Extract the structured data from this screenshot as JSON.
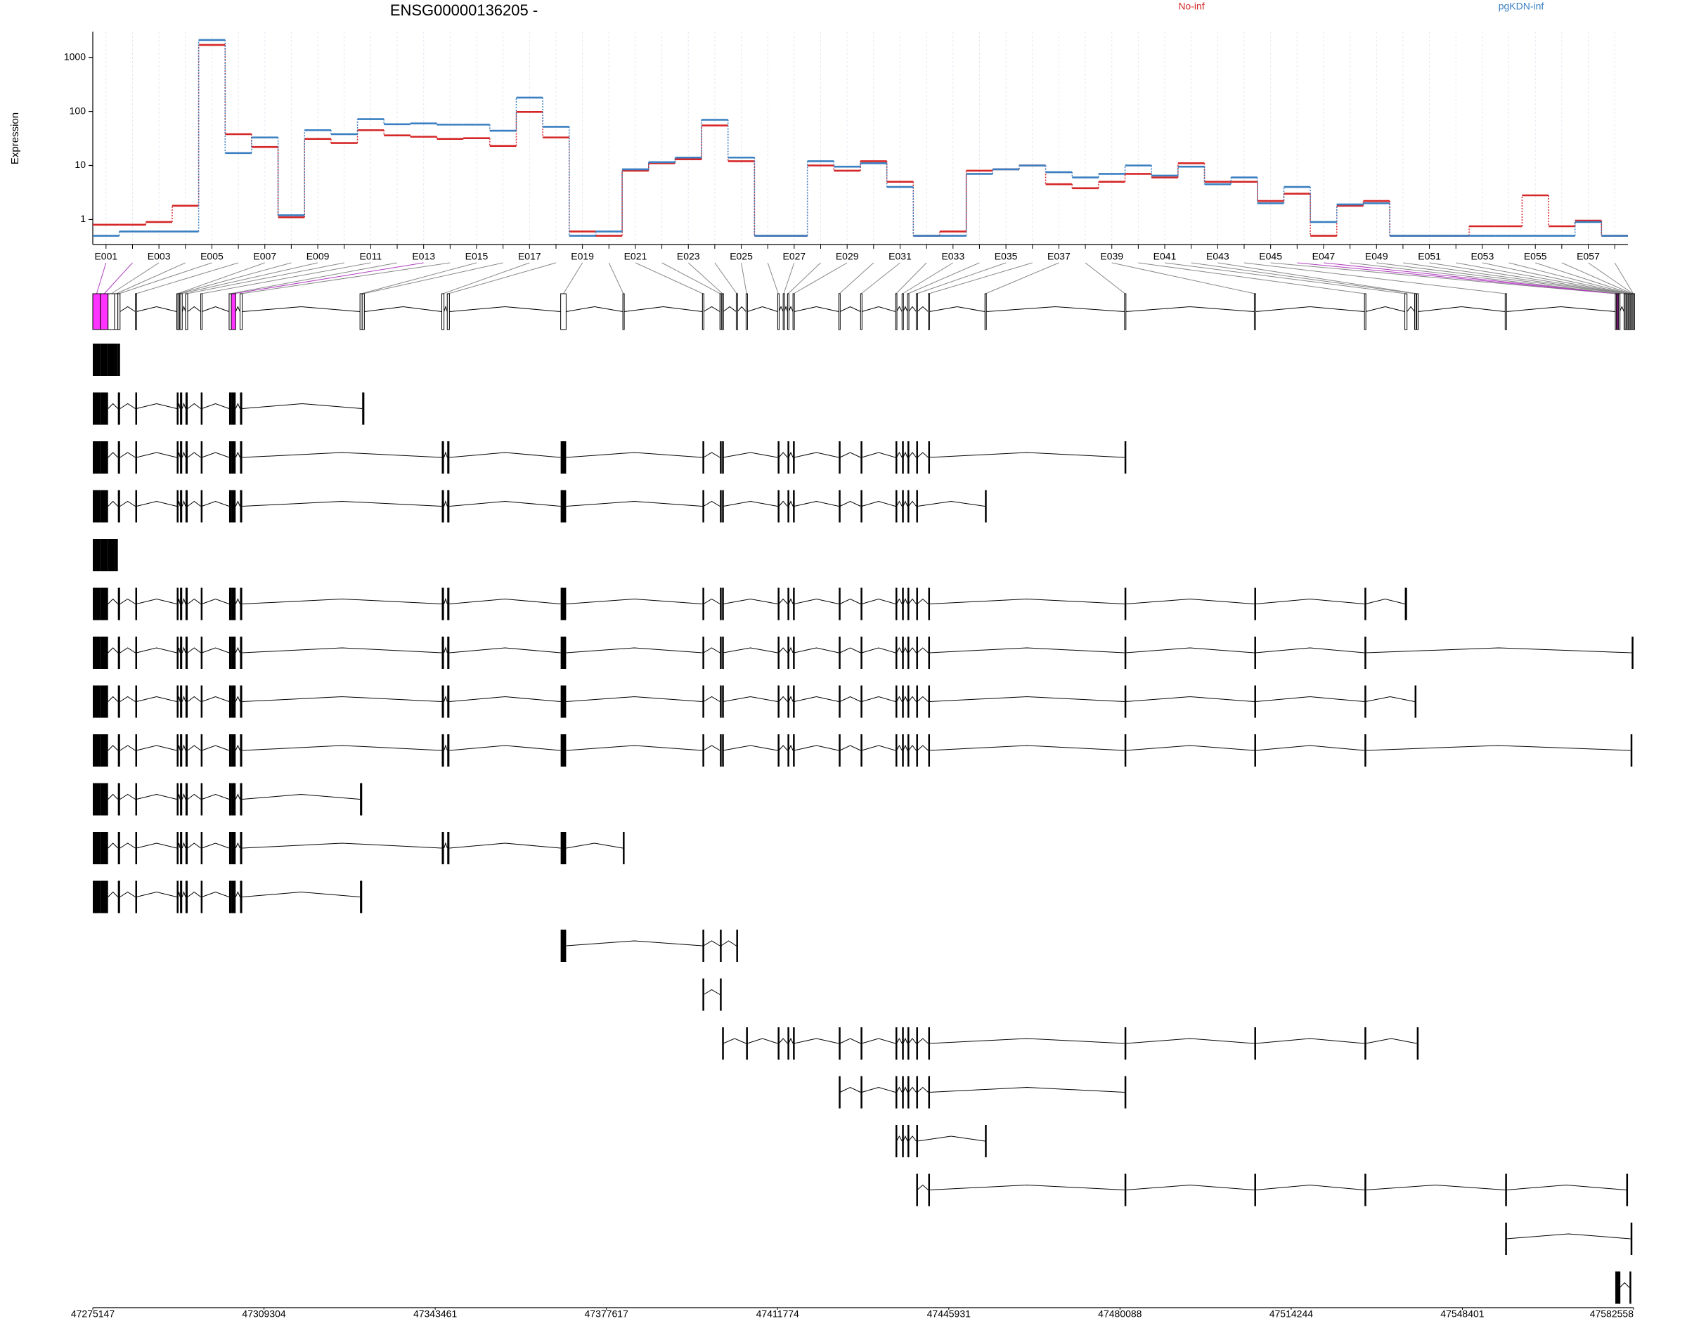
{
  "chart_data": {
    "type": "line",
    "title": "ENSG00000136205 -",
    "ylabel": "Expression",
    "yscale": "log",
    "ylim": [
      0.4,
      3000
    ],
    "yticks": [
      1,
      10,
      100,
      1000
    ],
    "grid": true,
    "legend": "top",
    "categories": [
      "E001",
      null,
      "E003",
      null,
      "E005",
      null,
      "E007",
      null,
      "E009",
      null,
      "E011",
      null,
      "E013",
      null,
      "E015",
      null,
      "E017",
      null,
      "E019",
      null,
      "E021",
      null,
      "E023",
      null,
      "E025",
      null,
      "E027",
      null,
      "E029",
      null,
      "E031",
      null,
      "E033",
      null,
      "E035",
      null,
      "E037",
      null,
      "E039",
      null,
      "E041",
      null,
      "E043",
      null,
      "E045",
      null,
      "E047",
      null,
      "E049",
      null,
      "E051",
      null,
      "E053",
      null,
      "E055",
      null,
      "E057",
      null
    ],
    "series": [
      {
        "name": "No-inf",
        "color": "#d62728",
        "values": [
          0.8,
          0.8,
          0.9,
          1.8,
          1700,
          38,
          22,
          1.1,
          31,
          26,
          45,
          36,
          34,
          31,
          32,
          23,
          98,
          33,
          0.6,
          0.5,
          8,
          11,
          13,
          55,
          12,
          0.5,
          0.5,
          10,
          8,
          12,
          5,
          0.5,
          0.6,
          8,
          8.5,
          10,
          4.5,
          3.8,
          5,
          7,
          6,
          11,
          5,
          5,
          2.2,
          3,
          0.5,
          1.8,
          2.2,
          0.5,
          0.5,
          0.5,
          0.75,
          0.75,
          2.8,
          0.75,
          0.95,
          0.5
        ]
      },
      {
        "name": "pgKDN-inf",
        "color": "#3a7fc1",
        "values": [
          0.5,
          0.6,
          0.6,
          0.6,
          2100,
          17,
          33,
          1.2,
          45,
          38,
          72,
          58,
          60,
          57,
          57,
          44,
          180,
          52,
          0.5,
          0.6,
          8.5,
          11.5,
          14,
          70,
          14,
          0.5,
          0.5,
          12,
          9.5,
          11,
          4,
          0.5,
          0.5,
          7,
          8.5,
          10,
          7.5,
          6,
          7,
          10,
          6.5,
          9.5,
          4.5,
          6,
          2,
          4,
          0.9,
          1.9,
          2,
          0.5,
          0.5,
          0.5,
          0.5,
          0.5,
          0.5,
          0.5,
          0.9,
          0.5
        ]
      }
    ],
    "gene_model": {
      "xlim": [
        47275147,
        47582558
      ],
      "xticks": [
        47275147,
        47309304,
        47343461,
        47377617,
        47411774,
        47445931,
        47480088,
        47514244,
        47548401,
        47582558
      ],
      "significant_color": "#ff33ff",
      "bins": [
        {
          "start": 47275147,
          "end": 47276670,
          "significant": true
        },
        {
          "start": 47276670,
          "end": 47278193,
          "significant": true
        },
        {
          "start": 47278193,
          "end": 47279499
        },
        {
          "start": 47279499,
          "end": 47280152
        },
        {
          "start": 47280152,
          "end": 47280587
        },
        {
          "start": 47283633,
          "end": 47283851
        },
        {
          "start": 47291902,
          "end": 47292120
        },
        {
          "start": 47292120,
          "end": 47292337
        },
        {
          "start": 47292555,
          "end": 47292990
        },
        {
          "start": 47293643,
          "end": 47294078
        },
        {
          "start": 47296689,
          "end": 47296907
        },
        {
          "start": 47302347,
          "end": 47302782
        },
        {
          "start": 47302782,
          "end": 47303653,
          "significant": true
        },
        {
          "start": 47304523,
          "end": 47304958
        },
        {
          "start": 47328459,
          "end": 47328894
        },
        {
          "start": 47328894,
          "end": 47329329
        },
        {
          "start": 47344779,
          "end": 47345214
        },
        {
          "start": 47345867,
          "end": 47346302
        },
        {
          "start": 47368497,
          "end": 47369585
        },
        {
          "start": 47380901,
          "end": 47381118
        },
        {
          "start": 47396785,
          "end": 47397003
        },
        {
          "start": 47400267,
          "end": 47400485
        },
        {
          "start": 47400702,
          "end": 47400920
        },
        {
          "start": 47403531,
          "end": 47403749
        },
        {
          "start": 47405489,
          "end": 47405707
        },
        {
          "start": 47411800,
          "end": 47412017
        },
        {
          "start": 47412888,
          "end": 47413105
        },
        {
          "start": 47413758,
          "end": 47413976
        },
        {
          "start": 47414846,
          "end": 47415064
        },
        {
          "start": 47423985,
          "end": 47424203
        },
        {
          "start": 47428337,
          "end": 47428555
        },
        {
          "start": 47435301,
          "end": 47435518
        },
        {
          "start": 47436606,
          "end": 47436824
        },
        {
          "start": 47437694,
          "end": 47437912
        },
        {
          "start": 47439435,
          "end": 47439653
        },
        {
          "start": 47441829,
          "end": 47442046
        },
        {
          "start": 47453144,
          "end": 47453361
        },
        {
          "start": 47480997,
          "end": 47481214
        },
        {
          "start": 47506891,
          "end": 47507109
        },
        {
          "start": 47528869,
          "end": 47529086
        },
        {
          "start": 47536920,
          "end": 47537355
        },
        {
          "start": 47538878,
          "end": 47539096
        },
        {
          "start": 47539313,
          "end": 47539531
        },
        {
          "start": 47556939,
          "end": 47557157
        },
        {
          "start": 47578917,
          "end": 47579134
        },
        {
          "start": 47579134,
          "end": 47579352,
          "significant": true
        },
        {
          "start": 47579352,
          "end": 47579569,
          "significant": true
        },
        {
          "start": 47579569,
          "end": 47579787
        },
        {
          "start": 47580657,
          "end": 47580875
        },
        {
          "start": 47580875,
          "end": 47581093
        },
        {
          "start": 47581093,
          "end": 47581310
        },
        {
          "start": 47581310,
          "end": 47581528
        },
        {
          "start": 47581528,
          "end": 47581745
        },
        {
          "start": 47581745,
          "end": 47581963
        },
        {
          "start": 47581963,
          "end": 47582181
        },
        {
          "start": 47582181,
          "end": 47582398
        },
        {
          "start": 47582398,
          "end": 47582480
        },
        {
          "start": 47582480,
          "end": 47582550
        }
      ],
      "transcripts": [
        [
          0,
          1,
          2,
          3,
          4
        ],
        [
          0,
          1,
          4,
          5,
          6,
          8,
          9,
          10,
          11,
          12,
          13,
          15
        ],
        [
          0,
          1,
          4,
          5,
          6,
          8,
          9,
          10,
          11,
          12,
          13,
          16,
          17,
          18,
          20,
          21,
          22,
          25,
          27,
          28,
          29,
          30,
          31,
          32,
          33,
          34,
          35,
          37
        ],
        [
          0,
          1,
          4,
          5,
          6,
          8,
          9,
          10,
          11,
          12,
          13,
          16,
          17,
          18,
          20,
          21,
          22,
          25,
          27,
          28,
          29,
          30,
          31,
          32,
          33,
          34,
          36
        ],
        [
          0,
          1,
          2,
          3
        ],
        [
          0,
          1,
          4,
          5,
          6,
          8,
          9,
          10,
          11,
          12,
          13,
          16,
          17,
          18,
          20,
          21,
          22,
          25,
          27,
          28,
          29,
          30,
          31,
          32,
          33,
          34,
          35,
          37,
          38,
          39,
          40
        ],
        [
          0,
          1,
          4,
          5,
          6,
          8,
          9,
          10,
          11,
          12,
          13,
          16,
          17,
          18,
          20,
          21,
          22,
          25,
          27,
          28,
          29,
          30,
          31,
          32,
          33,
          34,
          35,
          37,
          38,
          39,
          55
        ],
        [
          0,
          1,
          4,
          5,
          6,
          8,
          9,
          10,
          11,
          12,
          13,
          16,
          17,
          18,
          20,
          21,
          22,
          25,
          27,
          28,
          29,
          30,
          31,
          32,
          33,
          34,
          35,
          37,
          38,
          39,
          41
        ],
        [
          0,
          1,
          4,
          5,
          6,
          8,
          9,
          10,
          11,
          12,
          13,
          16,
          17,
          18,
          20,
          21,
          22,
          25,
          27,
          28,
          29,
          30,
          31,
          32,
          33,
          34,
          35,
          37,
          38,
          39,
          54
        ],
        [
          0,
          1,
          4,
          5,
          6,
          8,
          9,
          10,
          11,
          12,
          13,
          14
        ],
        [
          0,
          1,
          4,
          5,
          6,
          8,
          9,
          10,
          11,
          12,
          13,
          16,
          17,
          18,
          19
        ],
        [
          0,
          1,
          4,
          5,
          6,
          8,
          9,
          10,
          11,
          12,
          13,
          14
        ],
        [
          18,
          20,
          21,
          23
        ],
        [
          20,
          21
        ],
        [
          22,
          24,
          25,
          27,
          28,
          29,
          30,
          31,
          32,
          33,
          34,
          35,
          37,
          38,
          39,
          42
        ],
        [
          29,
          30,
          31,
          32,
          33,
          34,
          35,
          37
        ],
        [
          31,
          32,
          33,
          34,
          36
        ],
        [
          34,
          35,
          37,
          38,
          39,
          43,
          50
        ],
        [
          43,
          54
        ],
        [
          44,
          45,
          46,
          47,
          53
        ]
      ]
    }
  }
}
